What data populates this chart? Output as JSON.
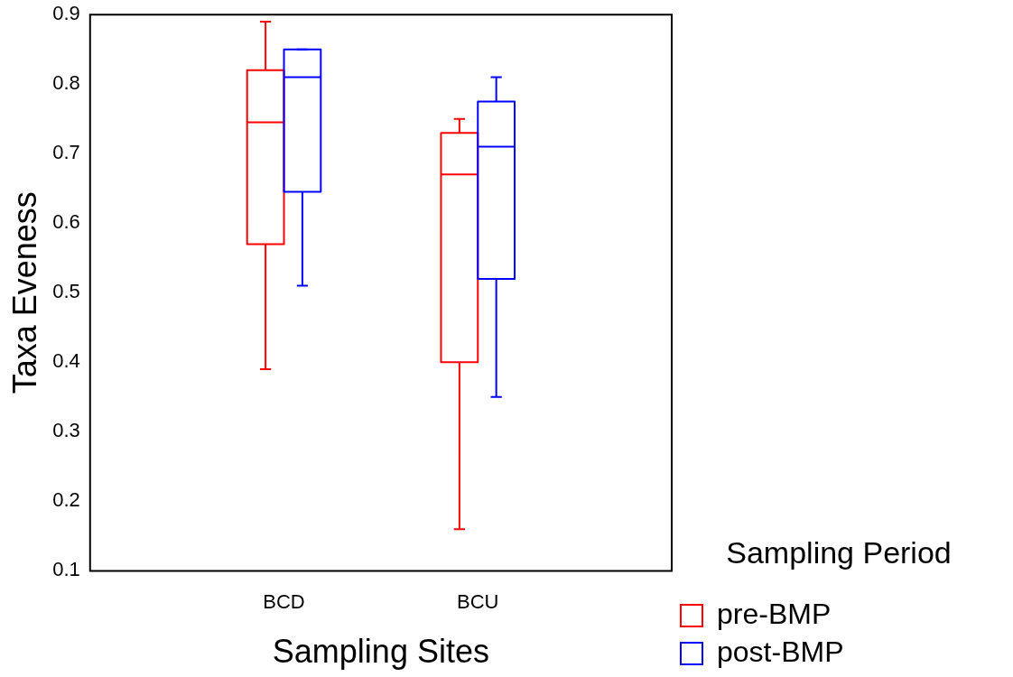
{
  "chart_data": {
    "type": "box",
    "xlabel": "Sampling Sites",
    "ylabel": "Taxa Eveness",
    "legend_title": "Sampling Period",
    "legend": "right",
    "categories": [
      "BCD",
      "BCU"
    ],
    "ylim": [
      0.1,
      0.9
    ],
    "yticks": [
      0.1,
      0.2,
      0.3,
      0.4,
      0.5,
      0.6,
      0.7,
      0.8,
      0.9
    ],
    "series": [
      {
        "name": "pre-BMP",
        "color": "#ff0000",
        "boxes": [
          {
            "low": 0.39,
            "q1": 0.57,
            "median": 0.745,
            "q3": 0.82,
            "high": 0.89
          },
          {
            "low": 0.16,
            "q1": 0.4,
            "median": 0.67,
            "q3": 0.73,
            "high": 0.75
          }
        ]
      },
      {
        "name": "post-BMP",
        "color": "#0000ff",
        "boxes": [
          {
            "low": 0.51,
            "q1": 0.645,
            "median": 0.81,
            "q3": 0.85,
            "high": 0.85
          },
          {
            "low": 0.35,
            "q1": 0.52,
            "median": 0.71,
            "q3": 0.775,
            "high": 0.81
          }
        ]
      }
    ]
  }
}
